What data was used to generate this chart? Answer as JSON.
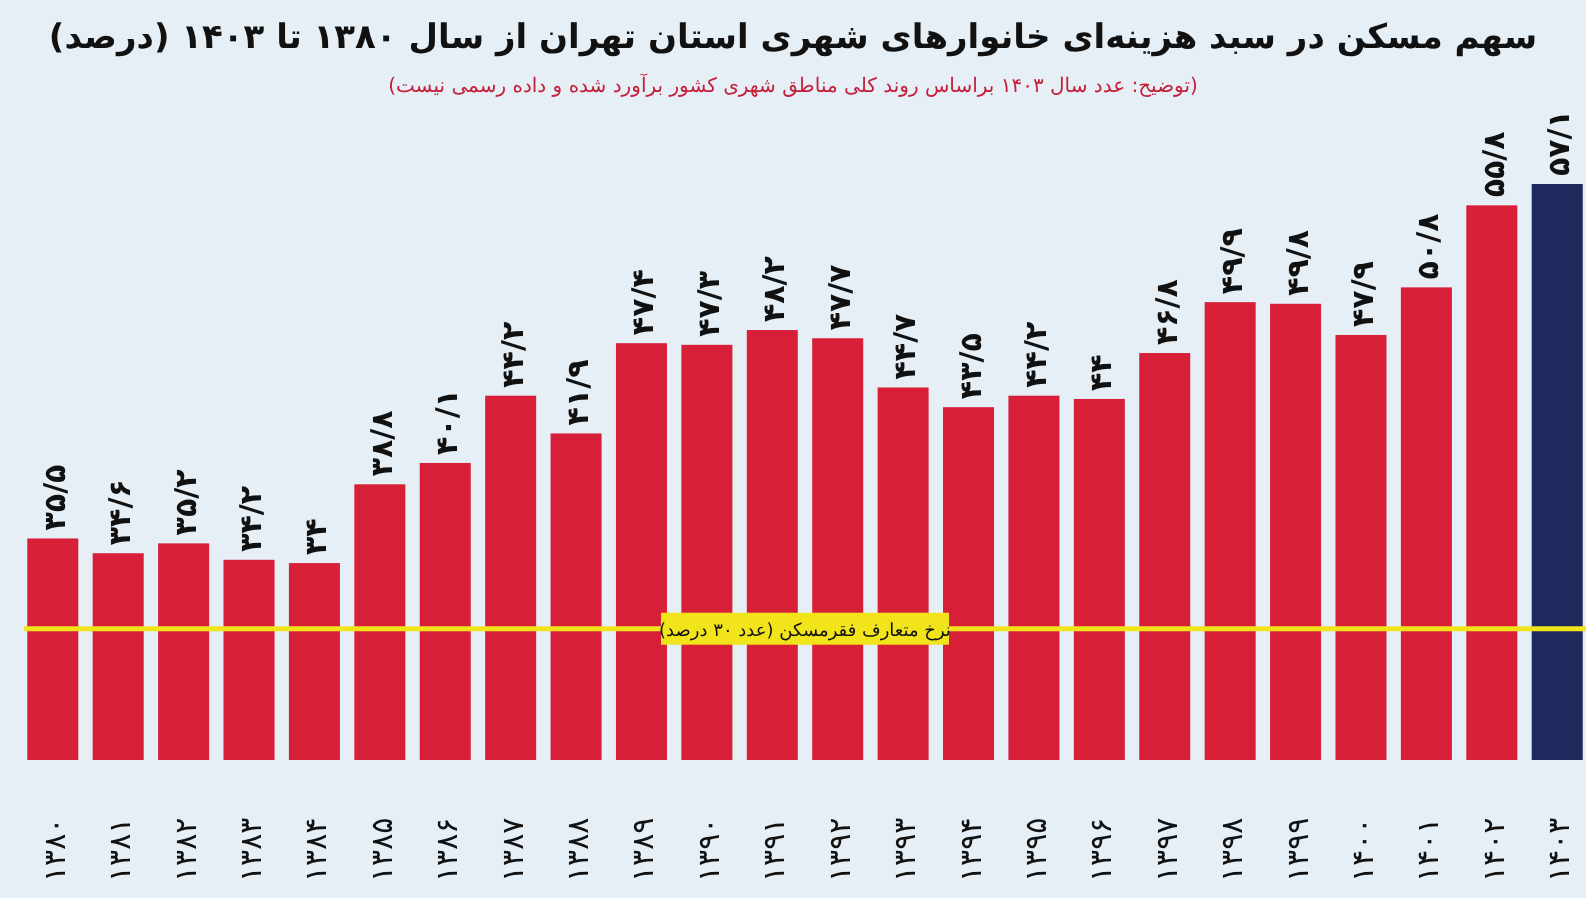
{
  "chart_data": {
    "type": "bar",
    "title": "سهم مسکن در سبد هزینه‌ای خانوارهای شهری استان تهران از سال ۱۳۸۰ تا ۱۴۰۳ (درصد)",
    "subtitle": "(توضیح: عدد سال ۱۴۰۳ براساس روند کلی مناطق شهری کشور برآورد شده و داده رسمی نیست)",
    "categories": [
      "۱۳۸۰",
      "۱۳۸۱",
      "۱۳۸۲",
      "۱۳۸۳",
      "۱۳۸۴",
      "۱۳۸۵",
      "۱۳۸۶",
      "۱۳۸۷",
      "۱۳۸۸",
      "۱۳۸۹",
      "۱۳۹۰",
      "۱۳۹۱",
      "۱۳۹۲",
      "۱۳۹۳",
      "۱۳۹۴",
      "۱۳۹۵",
      "۱۳۹۶",
      "۱۳۹۷",
      "۱۳۹۸",
      "۱۳۹۹",
      "۱۴۰۰",
      "۱۴۰۱",
      "۱۴۰۲",
      "۱۴۰۳"
    ],
    "values": [
      35.5,
      34.6,
      35.2,
      34.2,
      34,
      38.8,
      40.1,
      44.2,
      41.9,
      47.4,
      47.3,
      48.2,
      47.7,
      44.7,
      43.5,
      44.2,
      44,
      46.8,
      49.9,
      49.8,
      47.9,
      50.8,
      55.8,
      57.1
    ],
    "value_labels": [
      "۳۵/۵",
      "۳۴/۶",
      "۳۵/۲",
      "۳۴/۲",
      "۳۴",
      "۳۸/۸",
      "۴۰/۱",
      "۴۴/۲",
      "۴۱/۹",
      "۴۷/۴",
      "۴۷/۳",
      "۴۸/۲",
      "۴۷/۷",
      "۴۴/۷",
      "۴۳/۵",
      "۴۴/۲",
      "۴۴",
      "۴۶/۸",
      "۴۹/۹",
      "۴۹/۸",
      "۴۷/۹",
      "۵۰/۸",
      "۵۵/۸",
      "۵۷/۱"
    ],
    "colors": [
      "#d81f38",
      "#d81f38",
      "#d81f38",
      "#d81f38",
      "#d81f38",
      "#d81f38",
      "#d81f38",
      "#d81f38",
      "#d81f38",
      "#d81f38",
      "#d81f38",
      "#d81f38",
      "#d81f38",
      "#d81f38",
      "#d81f38",
      "#d81f38",
      "#d81f38",
      "#d81f38",
      "#d81f38",
      "#d81f38",
      "#d81f38",
      "#d81f38",
      "#d81f38",
      "#1e2a5e"
    ],
    "ylim": [
      22,
      57.1
    ],
    "tick_labels": "x",
    "ref_lines": [
      {
        "axis": "y",
        "value": 30,
        "label": "نرخ متعارف فقرمسکن (عدد ۳۰ درصد)",
        "color": "#f2e41a"
      }
    ]
  }
}
